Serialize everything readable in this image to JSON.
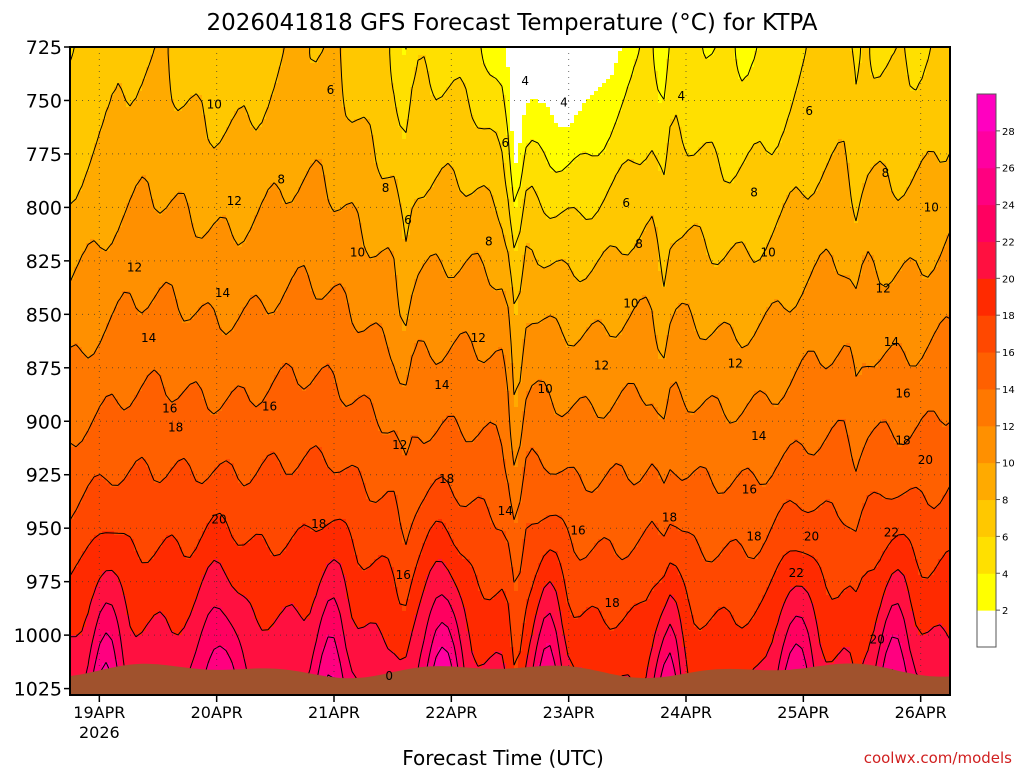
{
  "chart_data": {
    "type": "heatmap",
    "title": "2026041818 GFS Forecast Temperature (°C) for KTPA",
    "xlabel": "Forecast Time (UTC)",
    "ylabel": "",
    "credit": "coolwx.com/models",
    "y_axis": {
      "reversed": true,
      "ticks": [
        "725",
        "750",
        "775",
        "800",
        "825",
        "850",
        "875",
        "900",
        "925",
        "950",
        "975",
        "1000",
        "1025"
      ],
      "range": [
        725,
        1028
      ]
    },
    "x_axis": {
      "ticks": [
        {
          "label": "19APR",
          "sublabel": "2026",
          "day": 0
        },
        {
          "label": "20APR",
          "day": 1
        },
        {
          "label": "21APR",
          "day": 2
        },
        {
          "label": "22APR",
          "day": 3
        },
        {
          "label": "23APR",
          "day": 4
        },
        {
          "label": "24APR",
          "day": 5
        },
        {
          "label": "25APR",
          "day": 6
        },
        {
          "label": "26APR",
          "day": 7
        }
      ],
      "range_days": [
        -0.25,
        7.25
      ]
    },
    "colorbar": {
      "levels": [
        0,
        2,
        4,
        6,
        8,
        10,
        12,
        14,
        16,
        18,
        20,
        22,
        24,
        26,
        28,
        30
      ],
      "labels": [
        "2",
        "4",
        "6",
        "8",
        "10",
        "12",
        "14",
        "16",
        "18",
        "20",
        "22",
        "24",
        "26",
        "28"
      ],
      "colors": [
        "#ffffff",
        "#ffff00",
        "#ffe000",
        "#ffc800",
        "#ffaa00",
        "#ff9000",
        "#ff7800",
        "#ff6000",
        "#ff4800",
        "#ff2a00",
        "#ff1040",
        "#ff0060",
        "#ff0080",
        "#ff00a0",
        "#ff00c0"
      ]
    },
    "ground_color": "#a0522d",
    "contour_labels": [
      {
        "text": "6",
        "day": 1.97,
        "p": 745
      },
      {
        "text": "4",
        "day": 3.63,
        "p": 741
      },
      {
        "text": "4",
        "day": 3.96,
        "p": 751
      },
      {
        "text": "4",
        "day": 4.96,
        "p": 748
      },
      {
        "text": "10",
        "day": 0.98,
        "p": 752
      },
      {
        "text": "6",
        "day": 6.05,
        "p": 755
      },
      {
        "text": "6",
        "day": 3.46,
        "p": 770
      },
      {
        "text": "8",
        "day": 1.55,
        "p": 787
      },
      {
        "text": "8",
        "day": 2.44,
        "p": 791
      },
      {
        "text": "8",
        "day": 6.7,
        "p": 784
      },
      {
        "text": "8",
        "day": 5.58,
        "p": 793
      },
      {
        "text": "12",
        "day": 1.15,
        "p": 797
      },
      {
        "text": "6",
        "day": 4.49,
        "p": 798
      },
      {
        "text": "10",
        "day": 7.09,
        "p": 800
      },
      {
        "text": "6",
        "day": 2.63,
        "p": 806
      },
      {
        "text": "8",
        "day": 3.32,
        "p": 816
      },
      {
        "text": "8",
        "day": 4.6,
        "p": 817
      },
      {
        "text": "10",
        "day": 2.2,
        "p": 821
      },
      {
        "text": "10",
        "day": 5.7,
        "p": 821
      },
      {
        "text": "12",
        "day": 0.3,
        "p": 828
      },
      {
        "text": "14",
        "day": 1.05,
        "p": 840
      },
      {
        "text": "12",
        "day": 6.68,
        "p": 838
      },
      {
        "text": "10",
        "day": 4.53,
        "p": 845
      },
      {
        "text": "12",
        "day": 3.23,
        "p": 861
      },
      {
        "text": "14",
        "day": 0.42,
        "p": 861
      },
      {
        "text": "14",
        "day": 6.75,
        "p": 863
      },
      {
        "text": "12",
        "day": 4.28,
        "p": 874
      },
      {
        "text": "12",
        "day": 5.42,
        "p": 873
      },
      {
        "text": "14",
        "day": 2.92,
        "p": 883
      },
      {
        "text": "10",
        "day": 3.8,
        "p": 885
      },
      {
        "text": "16",
        "day": 0.6,
        "p": 894
      },
      {
        "text": "16",
        "day": 1.45,
        "p": 893
      },
      {
        "text": "16",
        "day": 6.85,
        "p": 887
      },
      {
        "text": "18",
        "day": 0.65,
        "p": 903
      },
      {
        "text": "12",
        "day": 2.56,
        "p": 911
      },
      {
        "text": "14",
        "day": 5.62,
        "p": 907
      },
      {
        "text": "18",
        "day": 6.85,
        "p": 909
      },
      {
        "text": "20",
        "day": 7.04,
        "p": 918
      },
      {
        "text": "18",
        "day": 2.96,
        "p": 927
      },
      {
        "text": "16",
        "day": 5.54,
        "p": 932
      },
      {
        "text": "14",
        "day": 3.46,
        "p": 942
      },
      {
        "text": "20",
        "day": 1.02,
        "p": 946
      },
      {
        "text": "18",
        "day": 1.87,
        "p": 948
      },
      {
        "text": "18",
        "day": 4.86,
        "p": 945
      },
      {
        "text": "16",
        "day": 4.08,
        "p": 951
      },
      {
        "text": "18",
        "day": 5.58,
        "p": 954
      },
      {
        "text": "20",
        "day": 6.07,
        "p": 954
      },
      {
        "text": "22",
        "day": 6.75,
        "p": 952
      },
      {
        "text": "22",
        "day": 5.94,
        "p": 971
      },
      {
        "text": "16",
        "day": 2.59,
        "p": 972
      },
      {
        "text": "18",
        "day": 4.37,
        "p": 985
      },
      {
        "text": "20",
        "day": 6.63,
        "p": 1002
      },
      {
        "text": "0",
        "day": 2.47,
        "p": 1019
      }
    ]
  }
}
